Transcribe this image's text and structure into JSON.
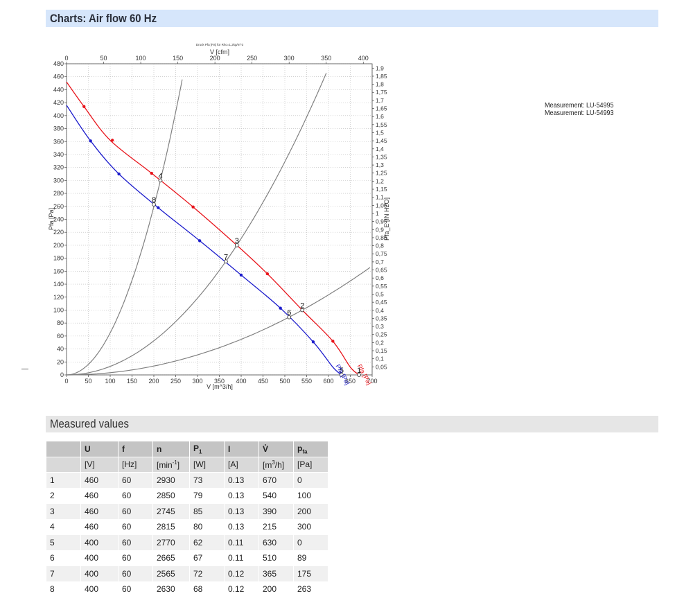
{
  "sections": {
    "charts_title": "Charts: Air flow 60 Hz",
    "measured_title": "Measured values"
  },
  "measurements": [
    "Measurement: LU-54995",
    "Measurement: LU-54993"
  ],
  "chart_data": {
    "type": "line",
    "caption": "Druck Pfa [Pa] für Rho=1,2kg/m^3",
    "xlabel": "V [m^3/h]",
    "x2label": "V [cfm]",
    "ylabel": "Pfa [Pa]",
    "y2label": "Pfa_E [IN H2O]",
    "xlim": [
      0,
      700
    ],
    "ylim": [
      0,
      480
    ],
    "x2lim": [
      0,
      411.9
    ],
    "y2lim": [
      0,
      1.927
    ],
    "x_ticks": [
      0,
      50,
      100,
      150,
      200,
      250,
      300,
      350,
      400,
      450,
      500,
      550,
      600,
      650,
      700
    ],
    "y_ticks": [
      0,
      20,
      40,
      60,
      80,
      100,
      120,
      140,
      160,
      180,
      200,
      220,
      240,
      260,
      280,
      300,
      320,
      340,
      360,
      380,
      400,
      420,
      440,
      460,
      480
    ],
    "x2_ticks": [
      0,
      50,
      100,
      150,
      200,
      250,
      300,
      350,
      400
    ],
    "y2_ticks": [
      "0,05",
      "0,1",
      "0,15",
      "0,2",
      "0,25",
      "0,3",
      "0,35",
      "0,4",
      "0,45",
      "0,5",
      "0,55",
      "0,6",
      "0,65",
      "0,7",
      "0,75",
      "0,8",
      "0,85",
      "0,9",
      "0,95",
      "1",
      "1,05",
      "1,1",
      "1,15",
      "1,2",
      "1,25",
      "1,3",
      "1,35",
      "1,4",
      "1,45",
      "1,5",
      "1,55",
      "1,6",
      "1,65",
      "1,7",
      "1,75",
      "1,8",
      "1,85",
      "1,9"
    ],
    "y2_values": [
      0.05,
      0.1,
      0.15,
      0.2,
      0.25,
      0.3,
      0.35,
      0.4,
      0.45,
      0.5,
      0.55,
      0.6,
      0.65,
      0.7,
      0.75,
      0.8,
      0.85,
      0.9,
      0.95,
      1.0,
      1.05,
      1.1,
      1.15,
      1.2,
      1.25,
      1.3,
      1.35,
      1.4,
      1.45,
      1.5,
      1.55,
      1.6,
      1.65,
      1.7,
      1.75,
      1.8,
      1.85,
      1.9
    ],
    "grid": true,
    "series": [
      {
        "name": "Pfa [Pa]",
        "color": "#e8141b",
        "points": [
          [
            0,
            452
          ],
          [
            40,
            414
          ],
          [
            100,
            362
          ],
          [
            195,
            311
          ],
          [
            290,
            259
          ],
          [
            390,
            200
          ],
          [
            460,
            156
          ],
          [
            540,
            100
          ],
          [
            610,
            52
          ],
          [
            650,
            12
          ],
          [
            670,
            0
          ]
        ],
        "markers": [
          [
            40,
            414
          ],
          [
            105,
            362
          ],
          [
            195,
            311
          ],
          [
            290,
            259
          ],
          [
            460,
            156
          ],
          [
            610,
            52
          ]
        ]
      },
      {
        "name": "Pfa [Pa]",
        "color": "#1c1ccc",
        "points": [
          [
            0,
            416
          ],
          [
            55,
            361
          ],
          [
            120,
            310
          ],
          [
            210,
            258
          ],
          [
            305,
            207
          ],
          [
            400,
            154
          ],
          [
            490,
            103
          ],
          [
            565,
            51
          ],
          [
            610,
            12
          ],
          [
            630,
            0
          ]
        ],
        "markers": [
          [
            55,
            361
          ],
          [
            120,
            310
          ],
          [
            210,
            258
          ],
          [
            305,
            207
          ],
          [
            400,
            154
          ],
          [
            490,
            103
          ],
          [
            565,
            51
          ]
        ]
      }
    ],
    "system_curves": [
      {
        "color": "#808080",
        "k": 0.00649,
        "xmax": 265
      },
      {
        "color": "#808080",
        "k": 0.001315,
        "xmax": 595
      },
      {
        "color": "#808080",
        "k": 0.000343,
        "xmax": 695
      }
    ],
    "op_points": [
      {
        "label": "1",
        "x": 670,
        "y": 0
      },
      {
        "label": "2",
        "x": 540,
        "y": 100
      },
      {
        "label": "3",
        "x": 390,
        "y": 200
      },
      {
        "label": "4",
        "x": 215,
        "y": 300
      },
      {
        "label": "5",
        "x": 630,
        "y": 0
      },
      {
        "label": "6",
        "x": 510,
        "y": 89
      },
      {
        "label": "7",
        "x": 365,
        "y": 175
      },
      {
        "label": "8",
        "x": 200,
        "y": 263
      }
    ]
  },
  "table": {
    "headers": [
      "",
      "U",
      "f",
      "n",
      "P1",
      "I",
      "V̊",
      "pfa"
    ],
    "units": [
      "",
      "[V]",
      "[Hz]",
      "[min-1]",
      "[W]",
      "[A]",
      "[m3/h]",
      "[Pa]"
    ],
    "rows": [
      [
        "1",
        "460",
        "60",
        "2930",
        "73",
        "0.13",
        "670",
        "0"
      ],
      [
        "2",
        "460",
        "60",
        "2850",
        "79",
        "0.13",
        "540",
        "100"
      ],
      [
        "3",
        "460",
        "60",
        "2745",
        "85",
        "0.13",
        "390",
        "200"
      ],
      [
        "4",
        "460",
        "60",
        "2815",
        "80",
        "0.13",
        "215",
        "300"
      ],
      [
        "5",
        "400",
        "60",
        "2770",
        "62",
        "0.11",
        "630",
        "0"
      ],
      [
        "6",
        "400",
        "60",
        "2665",
        "67",
        "0.11",
        "510",
        "89"
      ],
      [
        "7",
        "400",
        "60",
        "2565",
        "72",
        "0.12",
        "365",
        "175"
      ],
      [
        "8",
        "400",
        "60",
        "2630",
        "68",
        "0.12",
        "200",
        "263"
      ]
    ]
  }
}
